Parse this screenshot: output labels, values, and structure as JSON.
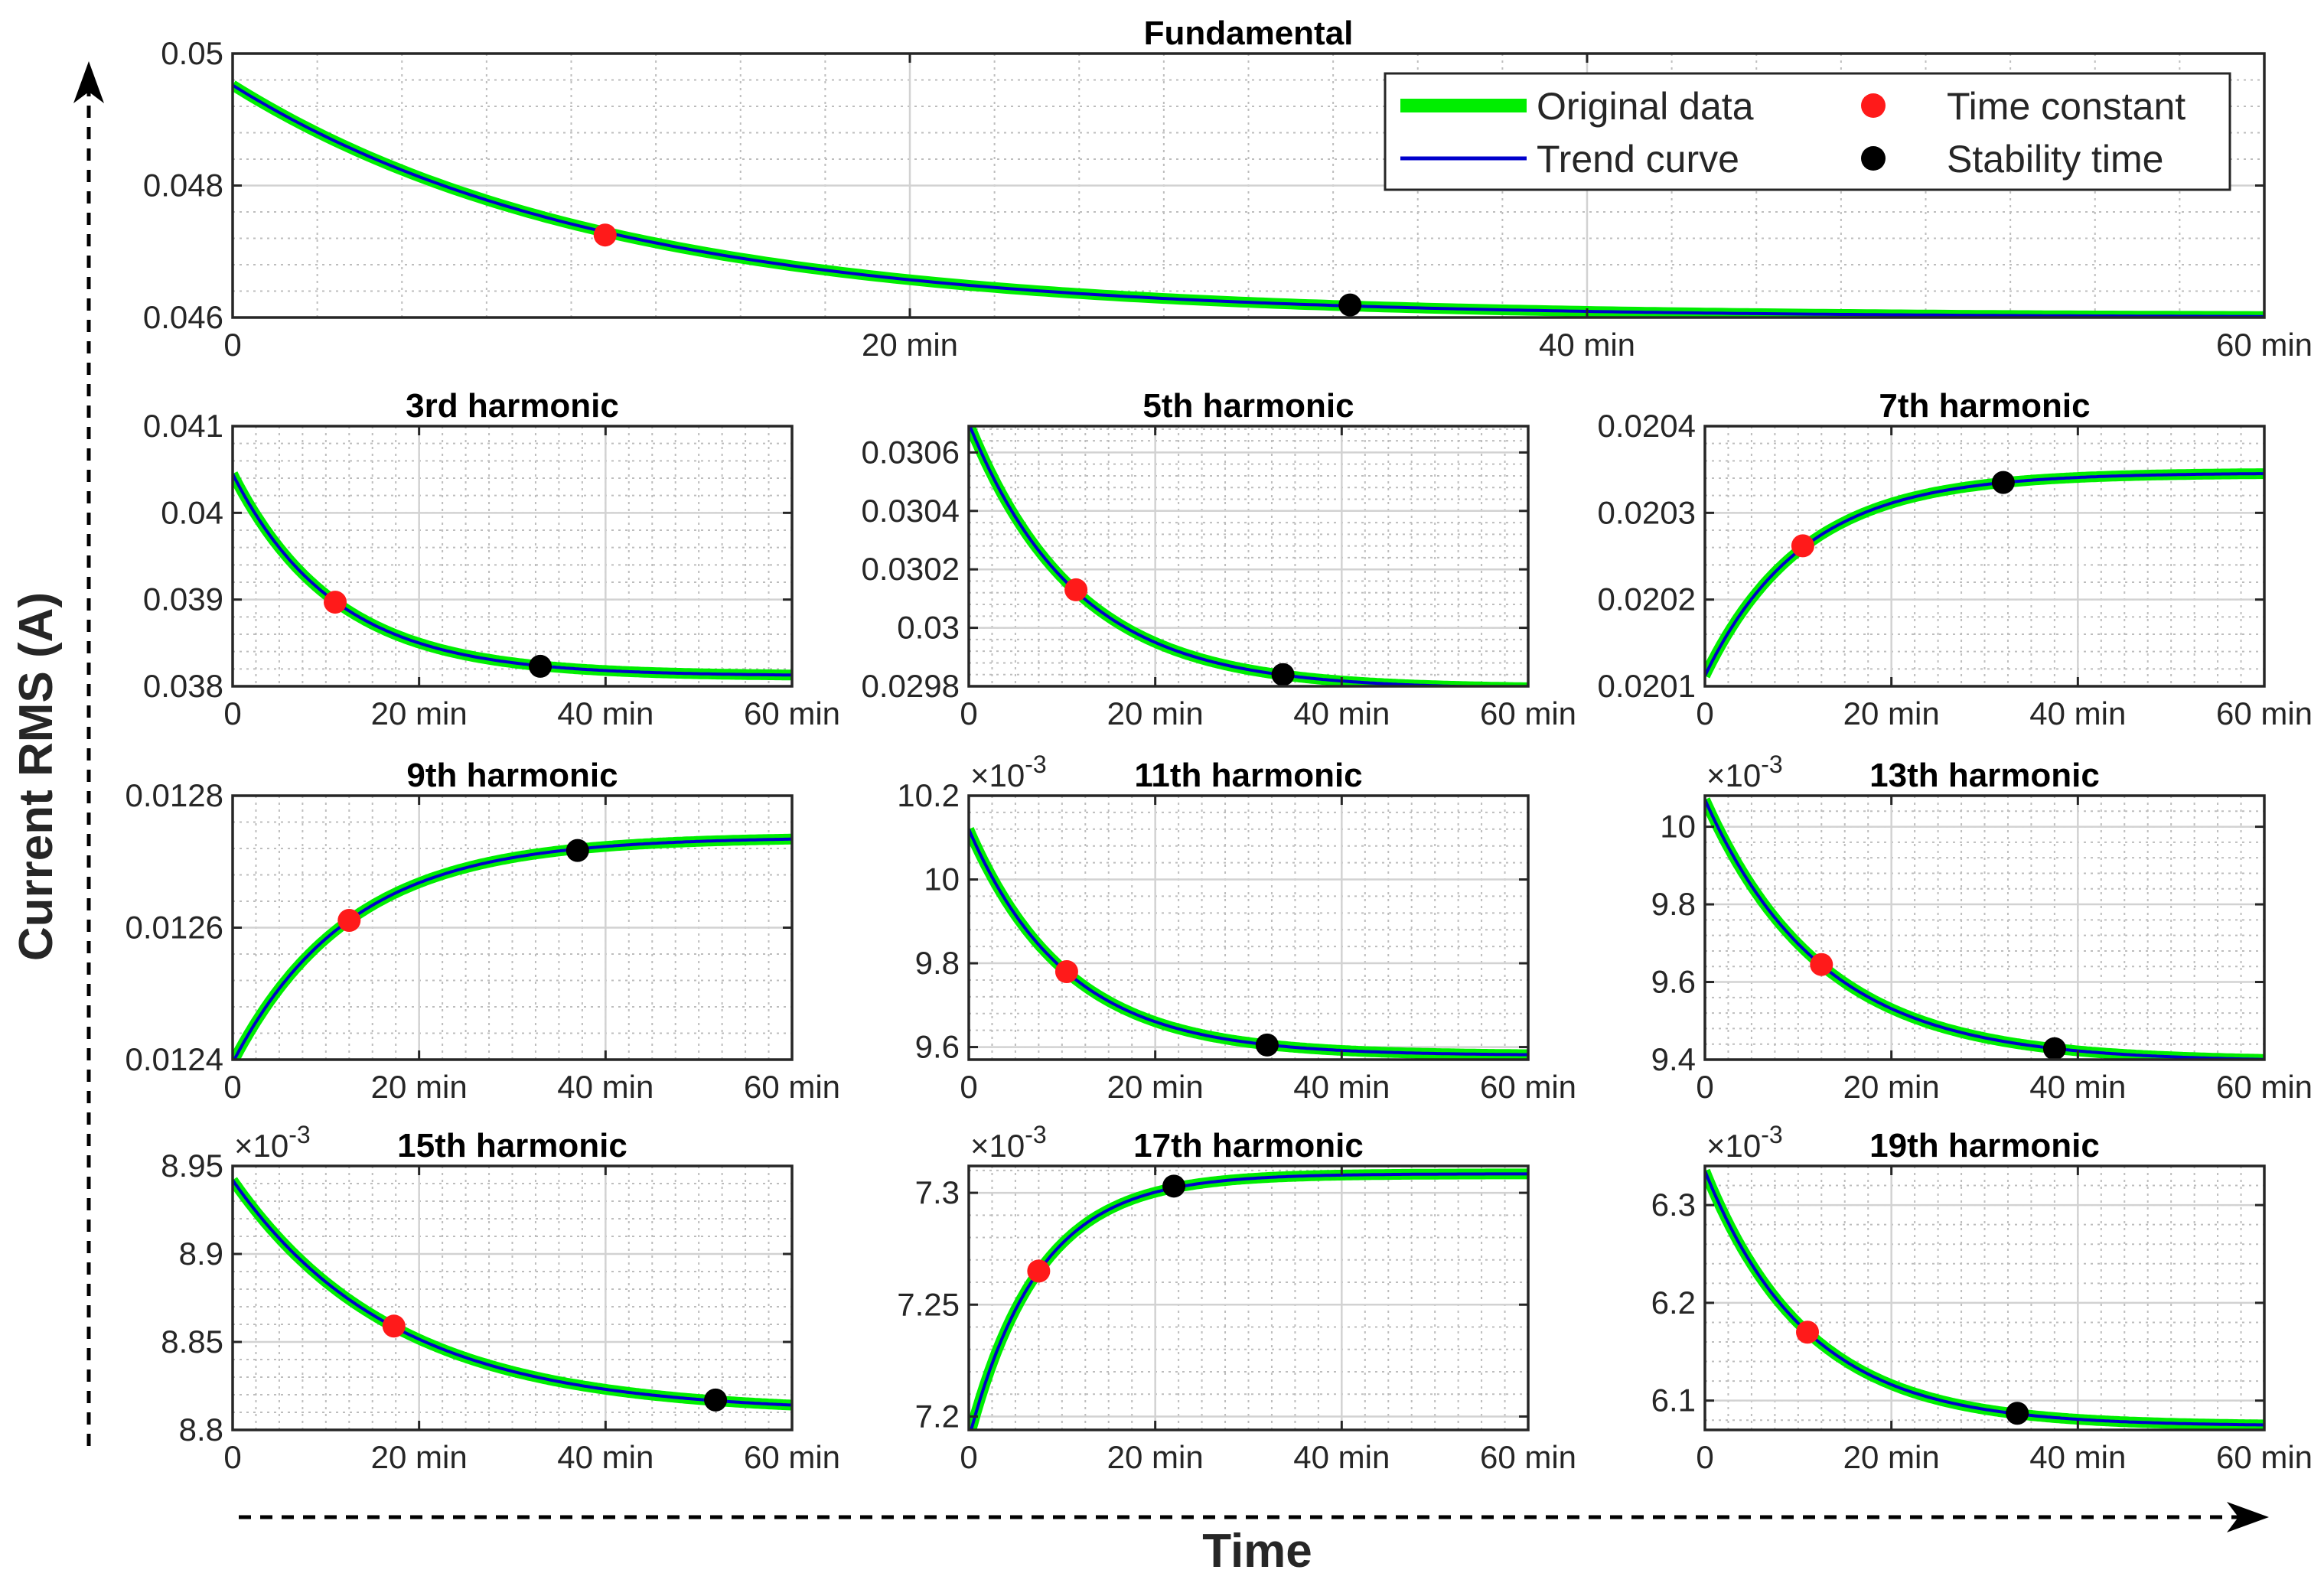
{
  "figure": {
    "ylabel": "Current RMS (A)",
    "xlabel": "Time"
  },
  "legend": {
    "items": [
      {
        "label": "Original data",
        "kind": "thick-line",
        "color": "#00ee00"
      },
      {
        "label": "Trend curve",
        "kind": "thin-line",
        "color": "#0000cc"
      },
      {
        "label": "Time constant",
        "kind": "dot",
        "color": "#ff0000"
      },
      {
        "label": "Stability time",
        "kind": "dot",
        "color": "#000000"
      }
    ]
  },
  "colors": {
    "original": "#00ee00",
    "trend": "#0000cc",
    "time_constant": "#ff1a1a",
    "stability": "#000000",
    "axis": "#262626",
    "grid": "#bdbdbd"
  },
  "chart_data": [
    {
      "type": "line",
      "title": "Fundamental",
      "xlim": [
        0,
        60
      ],
      "ylim": [
        0.046,
        0.05
      ],
      "xticks": [
        {
          "v": 0,
          "label": "0"
        },
        {
          "v": 20,
          "label": "20 min"
        },
        {
          "v": 40,
          "label": "40 min"
        },
        {
          "v": 60,
          "label": "60 min"
        }
      ],
      "yticks": [
        {
          "v": 0.046,
          "label": "0.046"
        },
        {
          "v": 0.048,
          "label": "0.048"
        },
        {
          "v": 0.05,
          "label": "0.05"
        }
      ],
      "exponent": "",
      "curve": {
        "y0": 0.04952,
        "yinf": 0.046,
        "tau": 11.0
      },
      "time_constant": {
        "x": 11.0,
        "y": 0.04725
      },
      "stability_time": {
        "x": 33.0,
        "y": 0.04619
      }
    },
    {
      "type": "line",
      "title": "3rd harmonic",
      "xlim": [
        0,
        60
      ],
      "ylim": [
        0.038,
        0.041
      ],
      "xticks": [
        {
          "v": 0,
          "label": "0"
        },
        {
          "v": 20,
          "label": "20 min"
        },
        {
          "v": 40,
          "label": "40 min"
        },
        {
          "v": 60,
          "label": "60 min"
        }
      ],
      "yticks": [
        {
          "v": 0.038,
          "label": "0.038"
        },
        {
          "v": 0.039,
          "label": "0.039"
        },
        {
          "v": 0.04,
          "label": "0.04"
        },
        {
          "v": 0.041,
          "label": "0.041"
        }
      ],
      "exponent": "",
      "curve": {
        "y0": 0.04045,
        "yinf": 0.03812,
        "tau": 11.0
      },
      "time_constant": {
        "x": 11.0,
        "y": 0.03897
      },
      "stability_time": {
        "x": 33.0,
        "y": 0.03823
      }
    },
    {
      "type": "line",
      "title": "5th harmonic",
      "xlim": [
        0,
        60
      ],
      "ylim": [
        0.0298,
        0.03069
      ],
      "xticks": [
        {
          "v": 0,
          "label": "0"
        },
        {
          "v": 20,
          "label": "20 min"
        },
        {
          "v": 40,
          "label": "40 min"
        },
        {
          "v": 60,
          "label": "60 min"
        }
      ],
      "yticks": [
        {
          "v": 0.0298,
          "label": "0.0298"
        },
        {
          "v": 0.03,
          "label": "0.03"
        },
        {
          "v": 0.0302,
          "label": "0.0302"
        },
        {
          "v": 0.0304,
          "label": "0.0304"
        },
        {
          "v": 0.0306,
          "label": "0.0306"
        }
      ],
      "exponent": "",
      "curve": {
        "y0": 0.0307,
        "yinf": 0.02979,
        "tau": 11.5
      },
      "time_constant": {
        "x": 11.5,
        "y": 0.03013
      },
      "stability_time": {
        "x": 33.7,
        "y": 0.02984
      }
    },
    {
      "type": "line",
      "title": "7th harmonic",
      "xlim": [
        0,
        60
      ],
      "ylim": [
        0.0201,
        0.0204
      ],
      "xticks": [
        {
          "v": 0,
          "label": "0"
        },
        {
          "v": 20,
          "label": "20 min"
        },
        {
          "v": 40,
          "label": "40 min"
        },
        {
          "v": 60,
          "label": "60 min"
        }
      ],
      "yticks": [
        {
          "v": 0.0201,
          "label": "0.0201"
        },
        {
          "v": 0.0202,
          "label": "0.0202"
        },
        {
          "v": 0.0203,
          "label": "0.0203"
        },
        {
          "v": 0.0204,
          "label": "0.0204"
        }
      ],
      "exponent": "",
      "curve": {
        "y0": 0.020112,
        "yinf": 0.020346,
        "tau": 10.5
      },
      "time_constant": {
        "x": 10.5,
        "y": 0.020262
      },
      "stability_time": {
        "x": 32.0,
        "y": 0.020335
      }
    },
    {
      "type": "line",
      "title": "9th harmonic",
      "xlim": [
        0,
        60
      ],
      "ylim": [
        0.0124,
        0.0128
      ],
      "xticks": [
        {
          "v": 0,
          "label": "0"
        },
        {
          "v": 20,
          "label": "20 min"
        },
        {
          "v": 40,
          "label": "40 min"
        },
        {
          "v": 60,
          "label": "60 min"
        }
      ],
      "yticks": [
        {
          "v": 0.0124,
          "label": "0.0124"
        },
        {
          "v": 0.0126,
          "label": "0.0126"
        },
        {
          "v": 0.0128,
          "label": "0.0128"
        }
      ],
      "exponent": "",
      "curve": {
        "y0": 0.012395,
        "yinf": 0.012737,
        "tau": 12.5
      },
      "time_constant": {
        "x": 12.5,
        "y": 0.012611
      },
      "stability_time": {
        "x": 37.0,
        "y": 0.012717
      }
    },
    {
      "type": "line",
      "title": "11th harmonic",
      "xlim": [
        0,
        60
      ],
      "ylim": [
        9.57,
        10.2
      ],
      "xticks": [
        {
          "v": 0,
          "label": "0"
        },
        {
          "v": 20,
          "label": "20 min"
        },
        {
          "v": 40,
          "label": "40 min"
        },
        {
          "v": 60,
          "label": "60 min"
        }
      ],
      "yticks": [
        {
          "v": 9.6,
          "label": "9.6"
        },
        {
          "v": 9.8,
          "label": "9.8"
        },
        {
          "v": 10,
          "label": "10"
        },
        {
          "v": 10.2,
          "label": "10.2"
        }
      ],
      "exponent": "-3",
      "curve": {
        "y0": 10.12,
        "yinf": 9.58,
        "tau": 10.5
      },
      "time_constant": {
        "x": 10.5,
        "y": 9.78
      },
      "stability_time": {
        "x": 32.0,
        "y": 9.605
      }
    },
    {
      "type": "line",
      "title": "13th harmonic",
      "xlim": [
        0,
        60
      ],
      "ylim": [
        9.4,
        10.08
      ],
      "xticks": [
        {
          "v": 0,
          "label": "0"
        },
        {
          "v": 20,
          "label": "20 min"
        },
        {
          "v": 40,
          "label": "40 min"
        },
        {
          "v": 60,
          "label": "60 min"
        }
      ],
      "yticks": [
        {
          "v": 9.4,
          "label": "9.4"
        },
        {
          "v": 9.6,
          "label": "9.6"
        },
        {
          "v": 9.8,
          "label": "9.8"
        },
        {
          "v": 10,
          "label": "10"
        }
      ],
      "exponent": "-3",
      "curve": {
        "y0": 10.07,
        "yinf": 9.395,
        "tau": 12.5
      },
      "time_constant": {
        "x": 12.5,
        "y": 9.645
      },
      "stability_time": {
        "x": 37.5,
        "y": 9.428
      }
    },
    {
      "type": "line",
      "title": "15th harmonic",
      "xlim": [
        0,
        60
      ],
      "ylim": [
        8.8,
        8.95
      ],
      "xticks": [
        {
          "v": 0,
          "label": "0"
        },
        {
          "v": 20,
          "label": "20 min"
        },
        {
          "v": 40,
          "label": "40 min"
        },
        {
          "v": 60,
          "label": "60 min"
        }
      ],
      "yticks": [
        {
          "v": 8.8,
          "label": "8.8"
        },
        {
          "v": 8.85,
          "label": "8.85"
        },
        {
          "v": 8.9,
          "label": "8.9"
        },
        {
          "v": 8.95,
          "label": "8.95"
        }
      ],
      "exponent": "-3",
      "curve": {
        "y0": 8.942,
        "yinf": 8.81,
        "tau": 17.3
      },
      "time_constant": {
        "x": 17.3,
        "y": 8.859
      },
      "stability_time": {
        "x": 51.8,
        "y": 8.817
      }
    },
    {
      "type": "line",
      "title": "17th harmonic",
      "xlim": [
        0,
        60
      ],
      "ylim": [
        7.194,
        7.312
      ],
      "xticks": [
        {
          "v": 0,
          "label": "0"
        },
        {
          "v": 20,
          "label": "20 min"
        },
        {
          "v": 40,
          "label": "40 min"
        },
        {
          "v": 60,
          "label": "60 min"
        }
      ],
      "yticks": [
        {
          "v": 7.2,
          "label": "7.2"
        },
        {
          "v": 7.25,
          "label": "7.25"
        },
        {
          "v": 7.3,
          "label": "7.3"
        }
      ],
      "exponent": "-3",
      "curve": {
        "y0": 7.19,
        "yinf": 7.3085,
        "tau": 7.5
      },
      "time_constant": {
        "x": 7.5,
        "y": 7.265
      },
      "stability_time": {
        "x": 22.0,
        "y": 7.303
      }
    },
    {
      "type": "line",
      "title": "19th harmonic",
      "xlim": [
        0,
        60
      ],
      "ylim": [
        6.07,
        6.34
      ],
      "xticks": [
        {
          "v": 0,
          "label": "0"
        },
        {
          "v": 20,
          "label": "20 min"
        },
        {
          "v": 40,
          "label": "40 min"
        },
        {
          "v": 60,
          "label": "60 min"
        }
      ],
      "yticks": [
        {
          "v": 6.1,
          "label": "6.1"
        },
        {
          "v": 6.2,
          "label": "6.2"
        },
        {
          "v": 6.3,
          "label": "6.3"
        }
      ],
      "exponent": "-3",
      "curve": {
        "y0": 6.335,
        "yinf": 6.074,
        "tau": 11.0
      },
      "time_constant": {
        "x": 11.0,
        "y": 6.17
      },
      "stability_time": {
        "x": 33.5,
        "y": 6.087
      }
    }
  ]
}
